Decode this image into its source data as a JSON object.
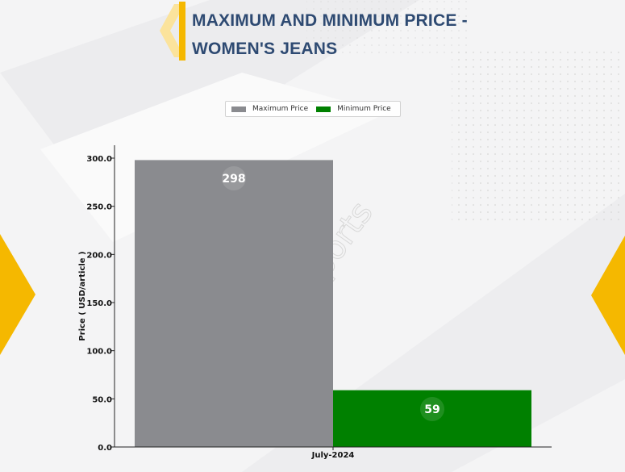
{
  "title": {
    "line1": "MAXIMUM AND MINIMUM PRICE -",
    "line2": "WOMEN'S JEANS"
  },
  "watermark": "DNJ Reports",
  "colors": {
    "title": "#2e4a72",
    "accent": "#f5b800",
    "max_bar": "#8a8b8f",
    "min_bar": "#008000"
  },
  "chart_data": {
    "type": "bar",
    "categories": [
      "July-2024"
    ],
    "series": [
      {
        "name": "Maximum Price",
        "values": [
          298
        ],
        "color": "#8a8b8f"
      },
      {
        "name": "Minimum Price",
        "values": [
          59
        ],
        "color": "#008000"
      }
    ],
    "data_labels": [
      "298",
      "59"
    ],
    "ylabel": "Price ( USD/article )",
    "xlabel": "",
    "ylim": [
      0,
      315
    ],
    "yticks": [
      "0.0",
      "50.0",
      "100.0",
      "150.0",
      "200.0",
      "250.0",
      "300.0"
    ],
    "legend_position": "top-center",
    "grid": false
  }
}
